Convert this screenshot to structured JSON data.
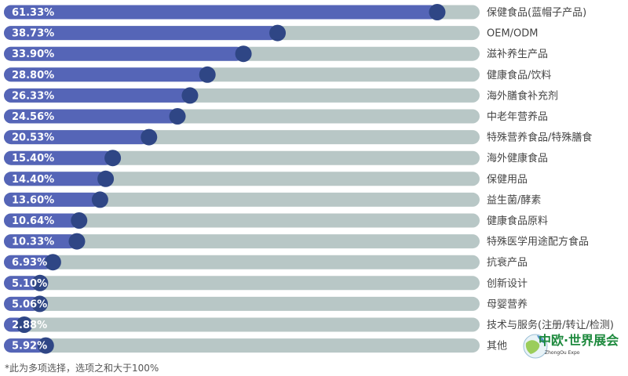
{
  "chart_data": {
    "type": "bar",
    "orientation": "horizontal",
    "xlim": [
      0,
      100
    ],
    "categories": [
      "保健食品(蓝帽子产品)",
      "OEM/ODM",
      "滋补养生产品",
      "健康食品/饮料",
      "海外膳食补充剂",
      "中老年营养品",
      "特殊营养食品/特殊膳食",
      "海外健康食品",
      "保健用品",
      "益生菌/酵素",
      "健康食品原料",
      "特殊医学用途配方食品",
      "抗衰产品",
      "创新设计",
      "母婴营养",
      "技术与服务(注册/转让/检测)",
      "其他"
    ],
    "values": [
      61.33,
      38.73,
      33.9,
      28.8,
      26.33,
      24.56,
      20.53,
      15.4,
      14.4,
      13.6,
      10.64,
      10.33,
      6.93,
      5.1,
      5.06,
      2.88,
      5.92
    ],
    "value_labels": [
      "61.33%",
      "38.73%",
      "33.90%",
      "28.80%",
      "26.33%",
      "24.56%",
      "20.53%",
      "15.40%",
      "14.40%",
      "13.60%",
      "10.64%",
      "10.33%",
      "6.93%",
      "5.10%",
      "5.06%",
      "2.88%",
      "5.92%"
    ],
    "colors": {
      "track": "#b8c7c6",
      "fill": "#5565b7",
      "knob": "#2f4685",
      "value_text": "#ffffff",
      "category_text": "#454545"
    }
  },
  "footnote": "*此为多项选择，选项之和大于100%",
  "logo": {
    "title": "中欧·世界展会",
    "subtitle": "ZhongOu Expo",
    "icon": "globe-logo-icon"
  }
}
